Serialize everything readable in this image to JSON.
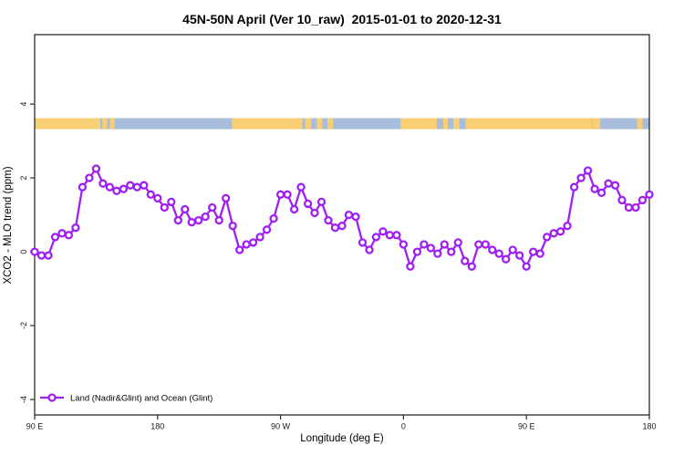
{
  "title": "45N-50N April (Ver 10_raw)  2015-01-01 to 2020-12-31",
  "colors": {
    "series": "#A020F0",
    "marker_fill": "#ffffff",
    "land": "#F8CF74",
    "ocean": "#A8BCDC",
    "axis": "#2b2b2b",
    "tick_text": "#1a1a1a"
  },
  "legend": {
    "label": "Land (Nadir&Glint) and Ocean (Glint)"
  },
  "chart_data": {
    "type": "line",
    "title": "45N-50N April (Ver 10_raw)  2015-01-01 to 2020-12-31",
    "xlabel": "Longitude (deg E)",
    "ylabel": "XCO2 - MLO trend (ppm)",
    "legend_position": "bottom-left",
    "grid": false,
    "x_axis_note": "longitude axis spans 450 deg, from 90E eastward through 180, 90W, 0, 90E to 180",
    "x_range_deg": [
      0,
      450
    ],
    "y_range": [
      -4.42,
      5.88
    ],
    "x_ticks": [
      {
        "deg": 0,
        "label": "90 E"
      },
      {
        "deg": 90,
        "label": "180"
      },
      {
        "deg": 180,
        "label": "90 W"
      },
      {
        "deg": 270,
        "label": "0"
      },
      {
        "deg": 360,
        "label": "90 E"
      },
      {
        "deg": 450,
        "label": "180"
      }
    ],
    "y_ticks": [
      {
        "value": -4,
        "label": "-4"
      },
      {
        "value": -2,
        "label": "-2"
      },
      {
        "value": 0,
        "label": "0"
      },
      {
        "value": 2,
        "label": "2"
      },
      {
        "value": 4,
        "label": "4"
      }
    ],
    "series": [
      {
        "name": "Land (Nadir&Glint) and Ocean (Glint)",
        "marker": "open-circle",
        "x_start_deg": 0,
        "x_step_deg": 5,
        "values": [
          0.0,
          -0.1,
          -0.1,
          0.4,
          0.5,
          0.45,
          0.65,
          1.75,
          2.0,
          2.25,
          1.85,
          1.75,
          1.65,
          1.7,
          1.8,
          1.75,
          1.8,
          1.55,
          1.45,
          1.2,
          1.35,
          0.85,
          1.15,
          0.8,
          0.85,
          0.95,
          1.2,
          0.85,
          1.45,
          0.7,
          0.05,
          0.2,
          0.25,
          0.4,
          0.6,
          0.9,
          1.55,
          1.55,
          1.15,
          1.75,
          1.3,
          1.05,
          1.35,
          0.85,
          0.65,
          0.7,
          1.0,
          0.95,
          0.25,
          0.05,
          0.4,
          0.55,
          0.45,
          0.45,
          0.2,
          -0.4,
          0.0,
          0.2,
          0.1,
          -0.05,
          0.2,
          0.0,
          0.25,
          -0.25,
          -0.4,
          0.2,
          0.2,
          0.05,
          -0.05,
          -0.2,
          0.05,
          -0.1,
          -0.4,
          0.0,
          -0.05,
          0.4,
          0.5,
          0.55,
          0.7,
          1.75,
          2.0,
          2.2,
          1.7,
          1.6,
          1.85,
          1.8,
          1.4,
          1.2,
          1.2,
          1.4,
          1.55
        ]
      }
    ],
    "surface_band": {
      "description": "land/ocean strip for 45N-50N drawn near y=3.5",
      "y_from": 3.32,
      "y_to": 3.62,
      "segments": [
        {
          "from": 0,
          "to": 48,
          "kind": "land"
        },
        {
          "from": 48,
          "to": 144.5,
          "kind": "ocean"
        },
        {
          "from": 49.5,
          "to": 53,
          "kind": "land"
        },
        {
          "from": 55,
          "to": 58.5,
          "kind": "land"
        },
        {
          "from": 144.5,
          "to": 196,
          "kind": "land"
        },
        {
          "from": 196,
          "to": 225,
          "kind": "ocean"
        },
        {
          "from": 198,
          "to": 202.5,
          "kind": "land"
        },
        {
          "from": 206.5,
          "to": 210.5,
          "kind": "land"
        },
        {
          "from": 214.5,
          "to": 218.5,
          "kind": "land"
        },
        {
          "from": 225,
          "to": 268,
          "kind": "ocean"
        },
        {
          "from": 268,
          "to": 408,
          "kind": "land"
        },
        {
          "from": 294.5,
          "to": 299,
          "kind": "ocean"
        },
        {
          "from": 302.5,
          "to": 306.5,
          "kind": "ocean"
        },
        {
          "from": 311,
          "to": 315.5,
          "kind": "ocean"
        },
        {
          "from": 408,
          "to": 450,
          "kind": "ocean"
        },
        {
          "from": 408.5,
          "to": 414,
          "kind": "land"
        },
        {
          "from": 441,
          "to": 445,
          "kind": "land"
        }
      ]
    }
  }
}
